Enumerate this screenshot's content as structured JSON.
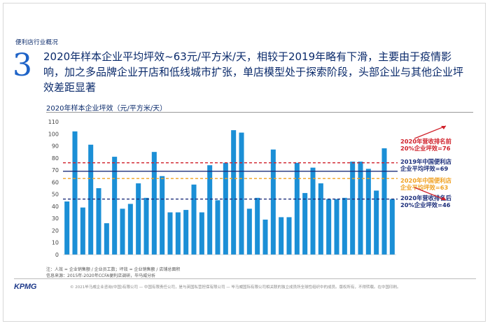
{
  "section_tag": "便利店行业概况",
  "section_number": "3",
  "headline": "2020年样本企业平均坪效~63元/平方米/天，相较于2019年略有下滑，主要由于疫情影响，加之多品牌企业开店和低线城市扩张，单店模型处于探索阶段，头部企业与其他企业坪效差距显著",
  "chart_title": "2020年样本企业坪效（元/平方米/天）",
  "notes": {
    "note1": "注：人效 = 企业销售额 / 企业员工数；坪效 = 企业销售额 / 店铺总面积",
    "source": "信息来源：2015年-2020年CCFA便利店调研，毕马威分析"
  },
  "logo": "KPMG",
  "copyright": "© 2021毕马威企业咨询(中国)有限公司 — 中国有限责任公司，是与英国私营担保有限公司 — 毕马威国际有限公司相关联的独立成员所全球性组织中的成员。版权所有，不得转载。在中国印刷。",
  "colors": {
    "bar": "#1b8fd6",
    "line_top20": "#d0202a",
    "line_2019": "#1b2d7a",
    "line_2020": "#f0a020",
    "line_bottom20": "#1b2d7a",
    "arrow": "#d0202a"
  },
  "chart_data": {
    "type": "bar",
    "title": "2020年样本企业坪效（元/平方米/天）",
    "ylim": [
      0,
      110
    ],
    "yticks": [
      0,
      10,
      20,
      30,
      40,
      50,
      60,
      70,
      80,
      90,
      100,
      110
    ],
    "values": [
      44,
      102,
      39,
      91,
      55,
      26,
      81,
      38,
      42,
      59,
      47,
      85,
      65,
      35,
      35,
      37,
      58,
      35,
      74,
      45,
      76,
      103,
      101,
      38,
      47,
      29,
      87,
      31,
      31,
      76,
      51,
      72,
      59,
      46,
      46,
      47,
      77,
      77,
      71,
      53,
      88,
      46
    ],
    "reference_lines": [
      {
        "label_lines": [
          "2020年营收排名前",
          "20%企业坪效=76"
        ],
        "value": 76,
        "style": "dashed",
        "color_key": "line_top20"
      },
      {
        "label_lines": [
          "2019年中国便利店",
          "企业平均坪效=69"
        ],
        "value": 69,
        "style": "solid",
        "color_key": "line_2019"
      },
      {
        "label_lines": [
          "2020年中国便利店",
          "企业平均坪效=63"
        ],
        "value": 63,
        "style": "dashed",
        "color_key": "line_2020"
      },
      {
        "label_lines": [
          "2020年营收排名后",
          "20%企业坪效=46"
        ],
        "value": 46,
        "style": "dashed",
        "color_key": "line_bottom20"
      }
    ]
  }
}
